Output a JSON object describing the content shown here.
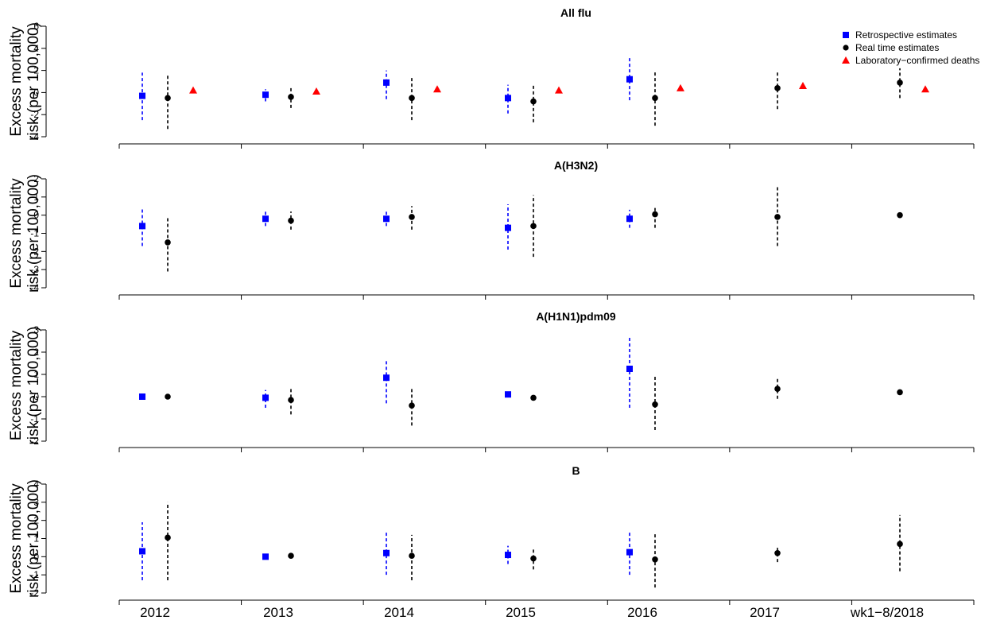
{
  "legend": {
    "placement": "top-right",
    "entries": [
      {
        "label": "Retrospective estimates",
        "color": "#0000ff",
        "marker": "square"
      },
      {
        "label": "Real time estimates",
        "color": "#000000",
        "marker": "circle"
      },
      {
        "label": "Laboratory−confirmed deaths",
        "color": "#ff0000",
        "marker": "triangle"
      }
    ]
  },
  "chart_data": [
    {
      "type": "scatter",
      "title": "All flu",
      "ylabel": [
        "Excess mortality",
        "risk (per 100,000)"
      ],
      "ylim": [
        -4,
        6
      ],
      "yticks": [
        -4,
        -2,
        0,
        2,
        4,
        6
      ],
      "categories": [
        "2012",
        "2013",
        "2014",
        "2015",
        "2016",
        "2017",
        "wk1−8/2018"
      ],
      "series": [
        {
          "name": "Retrospective estimates",
          "color": "#0000ff",
          "marker": "square",
          "values": [
            -0.3,
            -0.2,
            0.9,
            -0.5,
            1.2,
            null,
            null
          ],
          "lower": [
            -2.5,
            -0.8,
            -0.6,
            -1.9,
            -0.7,
            null,
            null
          ],
          "upper": [
            1.8,
            0.3,
            2.0,
            0.7,
            3.3,
            null,
            null
          ]
        },
        {
          "name": "Real time estimates",
          "color": "#000000",
          "marker": "circle",
          "values": [
            -0.5,
            -0.4,
            -0.5,
            -0.8,
            -0.5,
            0.4,
            0.9
          ],
          "lower": [
            -3.3,
            -1.4,
            -2.5,
            -2.7,
            -3.0,
            -1.5,
            -0.5
          ],
          "upper": [
            1.7,
            0.6,
            1.5,
            0.7,
            2.0,
            2.0,
            2.2
          ]
        },
        {
          "name": "Laboratory−confirmed deaths",
          "color": "#ff0000",
          "marker": "triangle",
          "values": [
            0.2,
            0.1,
            0.3,
            0.2,
            0.4,
            0.6,
            0.3
          ]
        }
      ]
    },
    {
      "type": "scatter",
      "title": "A(H3N2)",
      "ylabel": [
        "Excess mortality",
        "risk (per 100,000)"
      ],
      "ylim": [
        -4,
        2
      ],
      "yticks": [
        -4,
        -3,
        -2,
        -1,
        0,
        1,
        2
      ],
      "categories": [
        "2012",
        "2013",
        "2014",
        "2015",
        "2016",
        "2017",
        "wk1−8/2018"
      ],
      "series": [
        {
          "name": "Retrospective estimates",
          "color": "#0000ff",
          "marker": "square",
          "values": [
            -0.6,
            -0.2,
            -0.2,
            -0.7,
            -0.2,
            null,
            null
          ],
          "lower": [
            -1.7,
            -0.6,
            -0.6,
            -1.9,
            -0.7,
            null,
            null
          ],
          "upper": [
            0.4,
            0.2,
            0.2,
            0.6,
            0.3,
            null,
            null
          ]
        },
        {
          "name": "Real time estimates",
          "color": "#000000",
          "marker": "circle",
          "values": [
            -1.5,
            -0.3,
            -0.1,
            -0.6,
            0.05,
            -0.1,
            0.0
          ],
          "lower": [
            -3.1,
            -0.8,
            -0.8,
            -2.3,
            -0.7,
            -1.7,
            null
          ],
          "upper": [
            -0.1,
            0.2,
            0.5,
            1.1,
            0.5,
            1.6,
            null
          ]
        }
      ]
    },
    {
      "type": "scatter",
      "title": "A(H1N1)pdm09",
      "ylabel": [
        "Excess mortality",
        "risk (per 100,000)"
      ],
      "ylim": [
        -2,
        3
      ],
      "yticks": [
        -2,
        -1,
        0,
        1,
        2,
        3
      ],
      "categories": [
        "2012",
        "2013",
        "2014",
        "2015",
        "2016",
        "2017",
        "wk1−8/2018"
      ],
      "series": [
        {
          "name": "Retrospective estimates",
          "color": "#0000ff",
          "marker": "square",
          "values": [
            0.0,
            -0.05,
            0.85,
            0.1,
            1.25,
            null,
            null
          ],
          "lower": [
            null,
            -0.5,
            -0.3,
            null,
            -0.5,
            null,
            null
          ],
          "upper": [
            null,
            0.3,
            1.7,
            null,
            2.7,
            null,
            null
          ]
        },
        {
          "name": "Real time estimates",
          "color": "#000000",
          "marker": "circle",
          "values": [
            0.0,
            -0.15,
            -0.4,
            -0.05,
            -0.35,
            0.35,
            0.2
          ],
          "lower": [
            null,
            -0.8,
            -1.3,
            null,
            -1.5,
            -0.1,
            null
          ],
          "upper": [
            null,
            0.45,
            0.4,
            null,
            0.9,
            0.8,
            null
          ]
        }
      ]
    },
    {
      "type": "scatter",
      "title": "B",
      "ylabel": [
        "Excess mortality",
        "risk (per 100,000)"
      ],
      "ylim": [
        -2,
        4
      ],
      "yticks": [
        -2,
        -1,
        0,
        1,
        2,
        3,
        4
      ],
      "categories": [
        "2012",
        "2013",
        "2014",
        "2015",
        "2016",
        "2017",
        "wk1−8/2018"
      ],
      "series": [
        {
          "name": "Retrospective estimates",
          "color": "#0000ff",
          "marker": "square",
          "values": [
            0.3,
            0.0,
            0.2,
            0.1,
            0.25,
            null,
            null
          ],
          "lower": [
            -1.3,
            null,
            -1.0,
            -0.4,
            -1.0,
            null,
            null
          ],
          "upper": [
            1.9,
            null,
            1.4,
            0.6,
            1.4,
            null,
            null
          ]
        },
        {
          "name": "Real time estimates",
          "color": "#000000",
          "marker": "circle",
          "values": [
            1.05,
            0.05,
            0.05,
            -0.1,
            -0.15,
            0.2,
            0.7
          ],
          "lower": [
            -1.3,
            null,
            -1.3,
            -0.7,
            -1.7,
            -0.3,
            -0.8
          ],
          "upper": [
            3.0,
            null,
            1.2,
            0.4,
            1.3,
            0.5,
            2.3
          ]
        }
      ]
    }
  ]
}
